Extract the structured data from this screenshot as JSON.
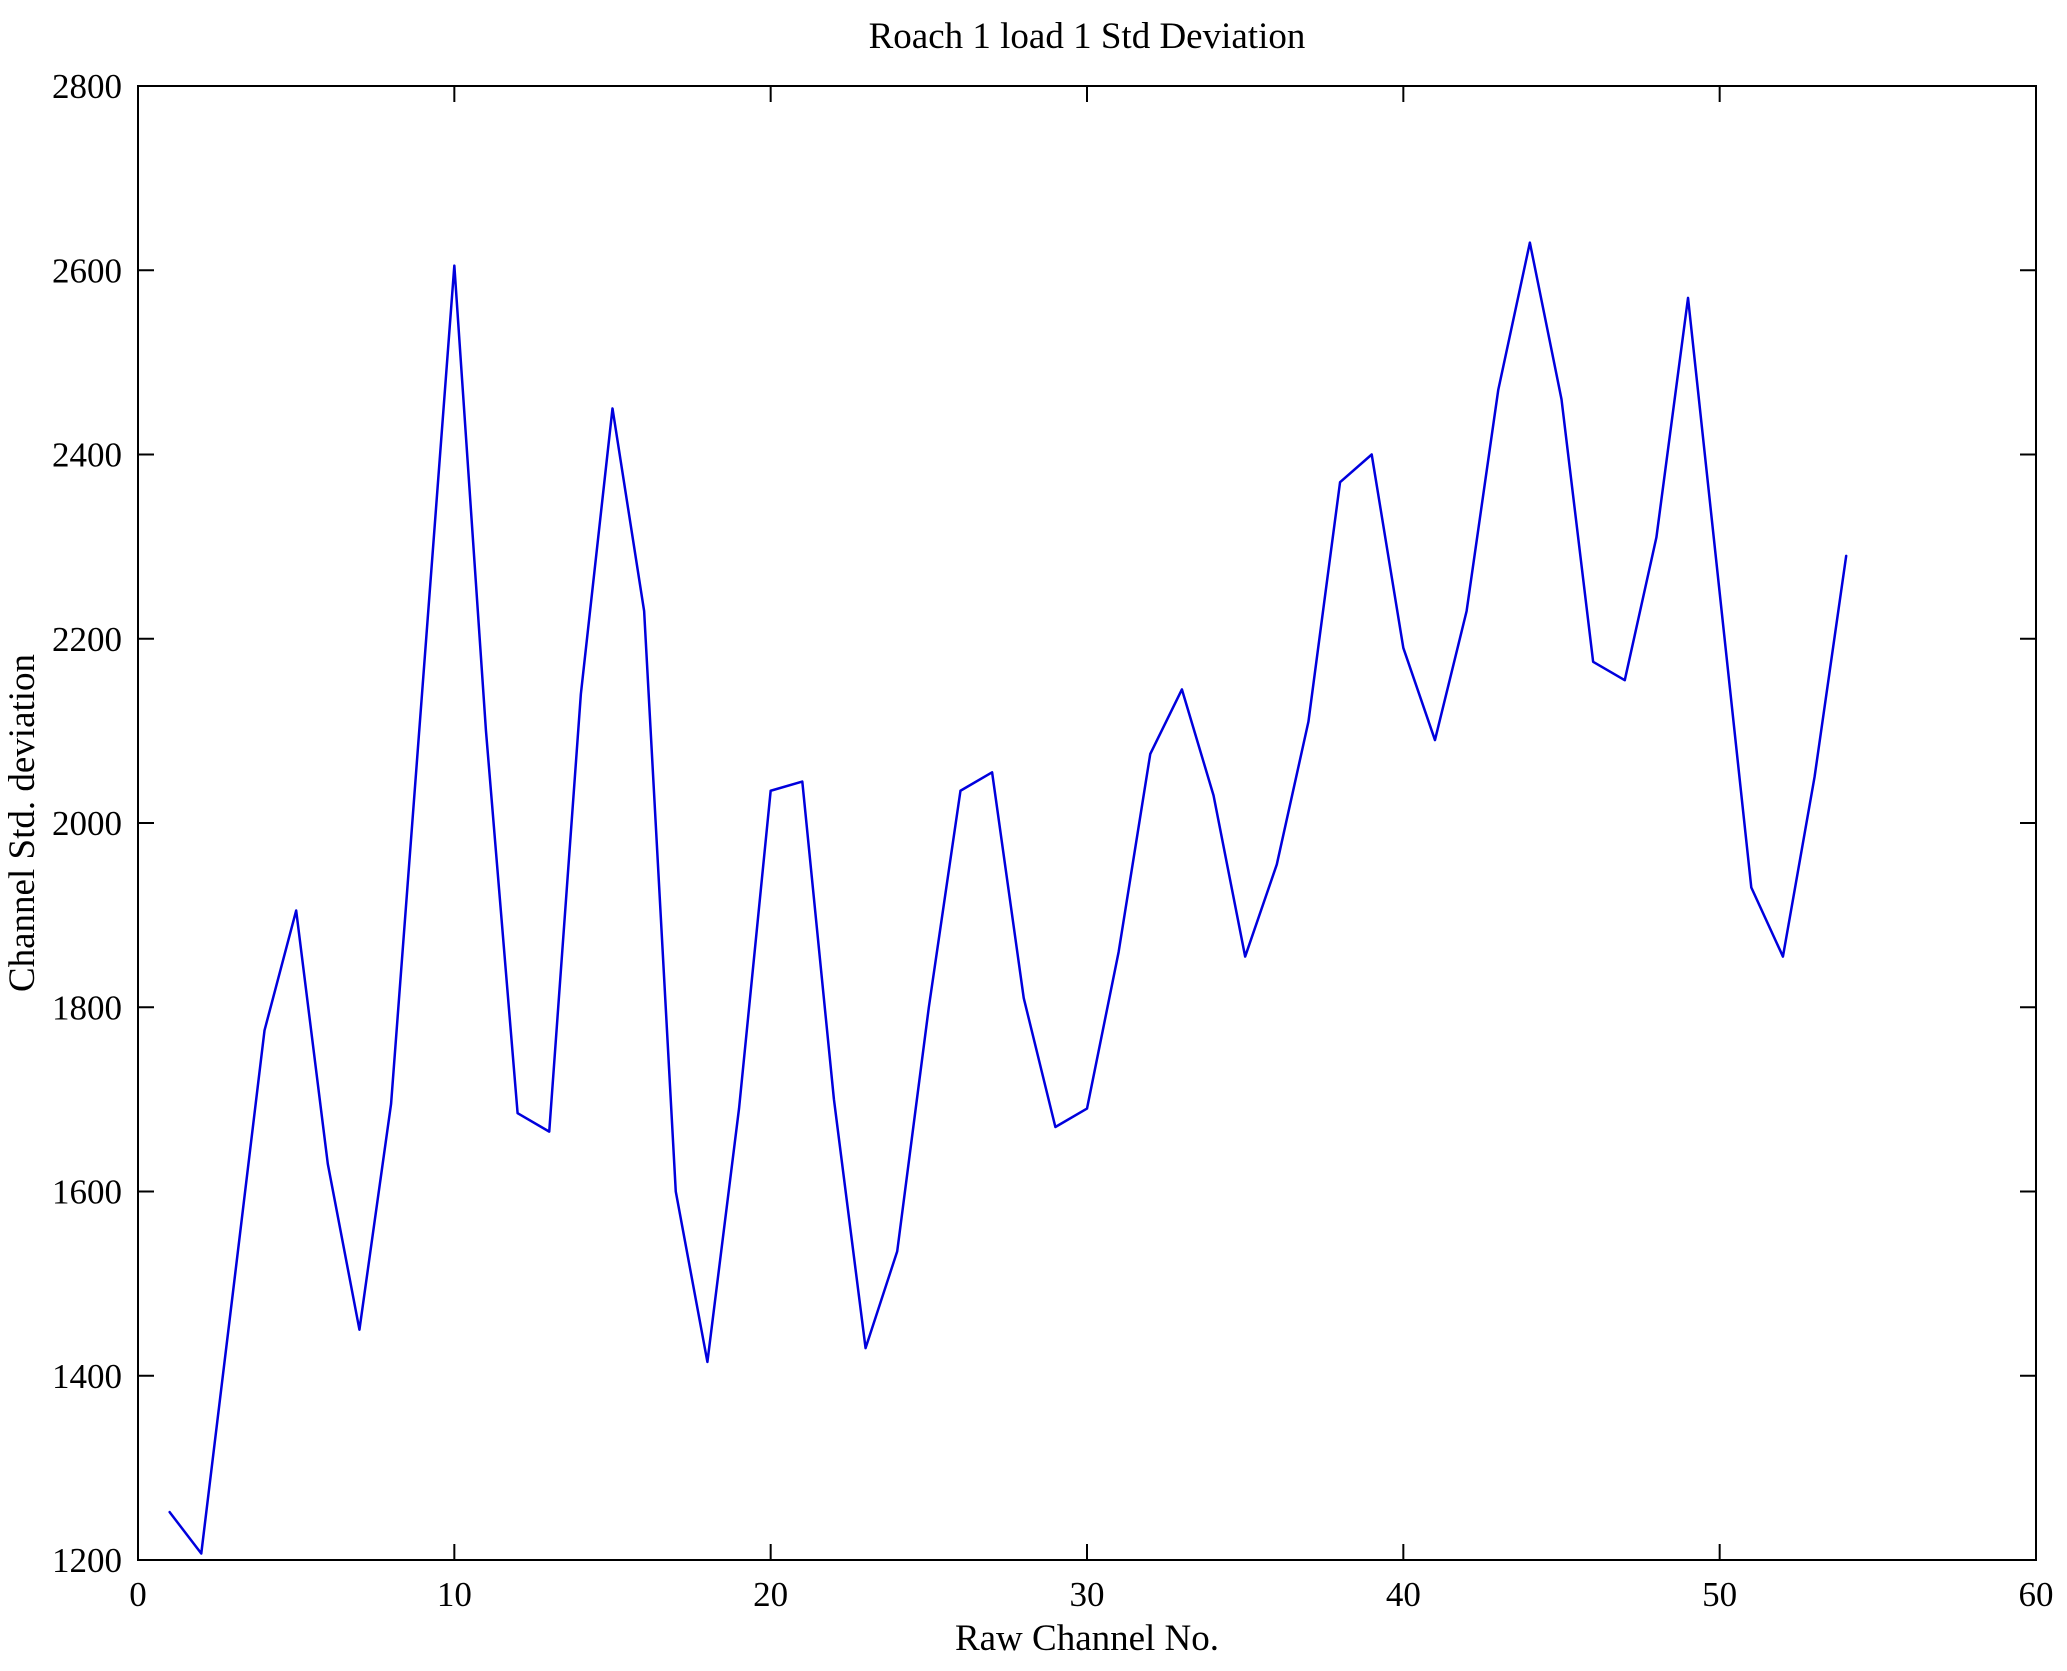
{
  "figure": {
    "background": "#ffffff",
    "axes_color": "#000000"
  },
  "chart_data": {
    "type": "line",
    "title": "Roach 1 load 1 Std Deviation",
    "xlabel": "Raw Channel No.",
    "ylabel": "Channel Std. deviation",
    "xlim": [
      0,
      60
    ],
    "ylim": [
      1200,
      2800
    ],
    "xticks": [
      0,
      10,
      20,
      30,
      40,
      50,
      60
    ],
    "yticks": [
      1200,
      1400,
      1600,
      1800,
      2000,
      2200,
      2400,
      2600,
      2800
    ],
    "grid": false,
    "legend": null,
    "line_color": "#0000dd",
    "x": [
      1,
      2,
      3,
      4,
      5,
      6,
      7,
      8,
      9,
      10,
      11,
      12,
      13,
      14,
      15,
      16,
      17,
      18,
      19,
      20,
      21,
      22,
      23,
      24,
      25,
      26,
      27,
      28,
      29,
      30,
      31,
      32,
      33,
      34,
      35,
      36,
      37,
      38,
      39,
      40,
      41,
      42,
      43,
      44,
      45,
      46,
      47,
      48,
      49,
      50,
      51,
      52,
      53,
      54
    ],
    "y": [
      1252,
      1207,
      1490,
      1775,
      1905,
      1630,
      1450,
      1695,
      2150,
      2605,
      2100,
      1685,
      1665,
      2140,
      2450,
      2230,
      1600,
      1415,
      1690,
      2035,
      2045,
      1700,
      1430,
      1535,
      1800,
      2035,
      2055,
      1810,
      1670,
      1690,
      1860,
      2075,
      2145,
      2030,
      1855,
      1955,
      2110,
      2370,
      2400,
      2190,
      2090,
      2230,
      2470,
      2630,
      2460,
      2175,
      2155,
      2310,
      2570,
      2250,
      1930,
      1855,
      2050,
      2290
    ]
  }
}
